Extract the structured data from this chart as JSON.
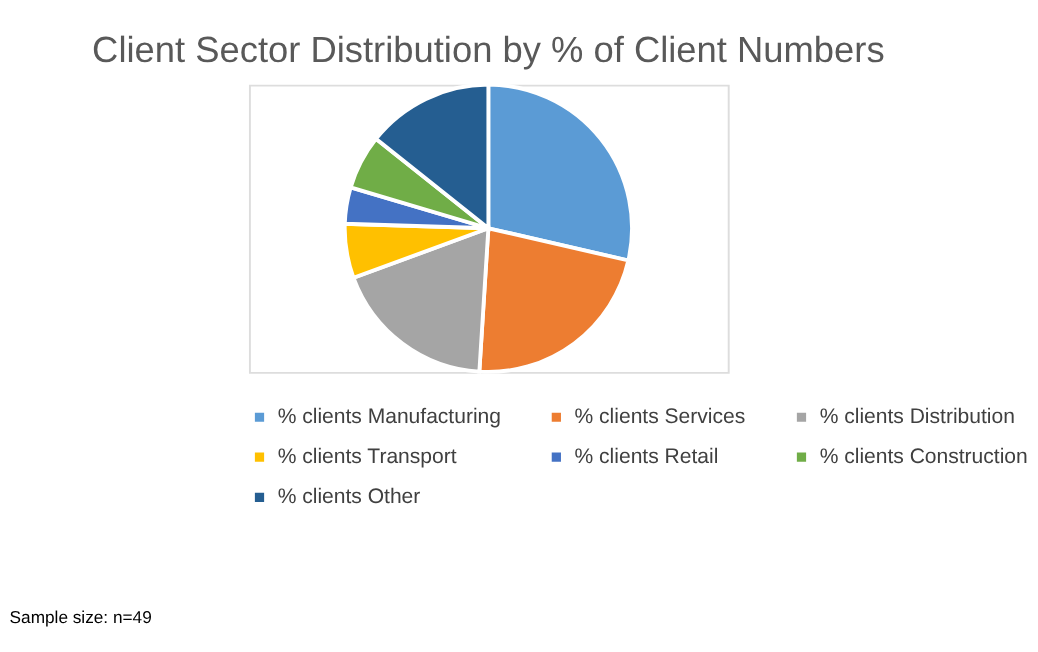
{
  "chart_data": {
    "type": "pie",
    "title": "Client Sector Distribution by % of Client Numbers",
    "categories": [
      "% clients Manufacturing",
      "% clients Services",
      "% clients Distribution",
      "% clients Transport",
      "% clients Retail",
      "% clients Construction",
      "% clients Other"
    ],
    "values": [
      28.6,
      22.4,
      18.4,
      6.1,
      4.1,
      6.1,
      14.3
    ],
    "colors": [
      "#5b9bd5",
      "#ed7d31",
      "#a5a5a5",
      "#ffc000",
      "#4472c4",
      "#70ad47",
      "#255e91"
    ],
    "legend": "bottom",
    "annotations": [
      "Sample size: n=49"
    ]
  }
}
